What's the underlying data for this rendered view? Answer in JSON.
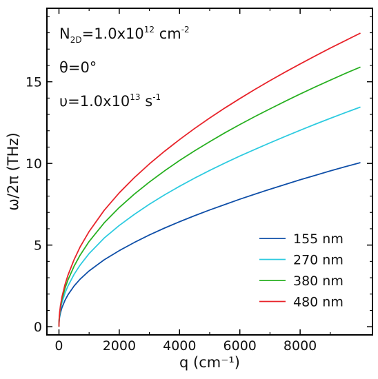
{
  "chart_data": {
    "type": "line",
    "xlabel": "q (cm⁻¹)",
    "ylabel": "ω/2π (THz)",
    "xlim": [
      -400,
      10400
    ],
    "ylim": [
      -0.5,
      19.5
    ],
    "x_ticks": [
      0,
      2000,
      4000,
      6000,
      8000
    ],
    "y_ticks": [
      0,
      5,
      10,
      15
    ],
    "legend_position": "bottom-right",
    "grid": false,
    "annotations": {
      "density": {
        "base": "N",
        "sub": "2D",
        "value": "=1.0x10",
        "exp": "12",
        "unit": " cm",
        "unit_exp": "-2"
      },
      "angle": {
        "text": "θ=0°"
      },
      "collision": {
        "base": "υ=1.0x10",
        "exp": "13",
        "unit": " s",
        "unit_exp": "-1"
      }
    },
    "x": [
      0,
      5,
      20,
      50,
      100,
      200,
      300,
      500,
      700,
      1000,
      1500,
      2000,
      2500,
      3000,
      3500,
      4000,
      4500,
      5000,
      5500,
      6000,
      6500,
      7000,
      7500,
      8000,
      8500,
      9000,
      9500,
      10000
    ],
    "series": [
      {
        "name": "155 nm",
        "color": "#0f4fa8",
        "values": [
          0.0,
          0.3,
          0.58,
          0.85,
          1.17,
          1.62,
          1.96,
          2.49,
          2.91,
          3.42,
          4.1,
          4.66,
          5.16,
          5.62,
          6.04,
          6.43,
          6.8,
          7.15,
          7.48,
          7.81,
          8.12,
          8.42,
          8.71,
          9.0,
          9.27,
          9.54,
          9.8,
          10.05
        ]
      },
      {
        "name": "270 nm",
        "color": "#2ecbe0",
        "values": [
          0.0,
          0.36,
          0.7,
          1.07,
          1.48,
          2.06,
          2.5,
          3.2,
          3.77,
          4.48,
          5.43,
          6.2,
          6.88,
          7.5,
          8.07,
          8.6,
          9.1,
          9.57,
          10.02,
          10.45,
          10.86,
          11.26,
          11.65,
          12.03,
          12.4,
          12.76,
          13.11,
          13.45
        ]
      },
      {
        "name": "380 nm",
        "color": "#28b021",
        "values": [
          0.0,
          0.4,
          0.78,
          1.2,
          1.68,
          2.35,
          2.87,
          3.7,
          4.38,
          5.22,
          6.36,
          7.3,
          8.12,
          8.86,
          9.54,
          10.18,
          10.77,
          11.33,
          11.87,
          12.38,
          12.87,
          13.34,
          13.8,
          14.25,
          14.68,
          15.1,
          15.51,
          15.9
        ]
      },
      {
        "name": "480 nm",
        "color": "#e8232a",
        "values": [
          0.0,
          0.43,
          0.84,
          1.3,
          1.83,
          2.58,
          3.16,
          4.1,
          4.88,
          5.83,
          7.13,
          8.2,
          9.13,
          9.97,
          10.74,
          11.46,
          12.14,
          12.78,
          13.39,
          13.97,
          14.53,
          15.07,
          15.59,
          16.09,
          16.58,
          17.06,
          17.52,
          17.98
        ]
      }
    ]
  }
}
